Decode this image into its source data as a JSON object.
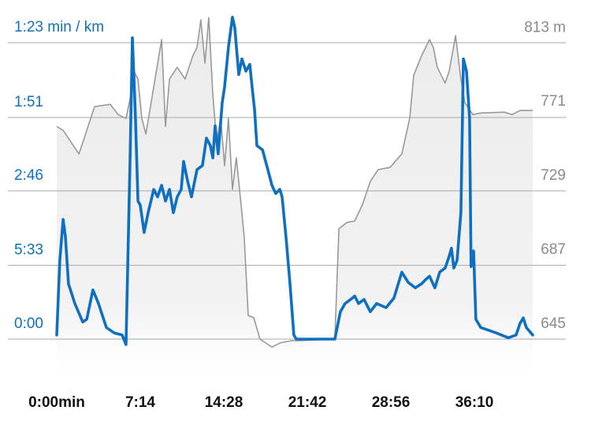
{
  "chart_data": {
    "type": "line",
    "xlim": [
      0,
      2473
    ],
    "xticks": [
      {
        "value": 0,
        "label": "0:00min"
      },
      {
        "value": 434,
        "label": "7:14"
      },
      {
        "value": 868,
        "label": "14:28"
      },
      {
        "value": 1302,
        "label": "21:42"
      },
      {
        "value": 1736,
        "label": "28:56"
      },
      {
        "value": 2170,
        "label": "36:10"
      }
    ],
    "ylim": [
      0,
      48
    ],
    "yticks": [
      {
        "value": 0,
        "label": "0:00"
      },
      {
        "value": 10.81,
        "label": "5:33"
      },
      {
        "value": 21.69,
        "label": "2:46"
      },
      {
        "value": 32.43,
        "label": "1:51"
      },
      {
        "value": 43.37,
        "label": "1:23 min / km"
      }
    ],
    "y2lim": [
      645,
      831
    ],
    "y2ticks": [
      645,
      687,
      729,
      771,
      {
        "value": 813,
        "label": "813 m"
      }
    ],
    "grid": true,
    "series": [
      {
        "color": "#999999",
        "axis": "y2",
        "x": [
          0,
          33,
          74,
          115,
          143,
          176,
          197,
          278,
          319,
          360,
          381,
          401,
          422,
          442,
          463,
          504,
          545,
          565,
          586,
          626,
          667,
          708,
          729,
          749,
          770,
          790,
          811,
          831,
          852,
          872,
          892,
          913,
          933,
          954,
          974,
          995,
          1024,
          1056,
          1118,
          1159,
          1220,
          1261,
          1445,
          1466,
          1507,
          1548,
          1588,
          1629,
          1670,
          1732,
          1793,
          1834,
          1855,
          1896,
          1937,
          1957,
          1977,
          2018,
          2039,
          2072,
          2100,
          2121,
          2162,
          2203,
          2325,
          2366,
          2407,
          2473
        ],
        "values": [
          765.6,
          763.4,
          756.7,
          750.0,
          758.9,
          770.1,
          776.8,
          778.1,
          772.3,
          770.1,
          781.3,
          796.9,
          792.4,
          770.1,
          761.2,
          788.0,
          814.8,
          765.6,
          792.4,
          799.1,
          792.4,
          805.8,
          810.3,
          826.0,
          801.4,
          827.3,
          783.5,
          756.7,
          770.1,
          743.3,
          770.1,
          729.9,
          747.8,
          725.4,
          703.1,
          658.4,
          657.1,
          645.0,
          640.5,
          642.8,
          644.1,
          644.1,
          645.0,
          707.6,
          711.1,
          712.0,
          721.0,
          734.4,
          741.1,
          742.4,
          750.0,
          770.1,
          794.7,
          805.8,
          814.8,
          810.3,
          799.1,
          790.2,
          796.9,
          817.0,
          792.4,
          779.0,
          772.3,
          773.2,
          773.7,
          772.3,
          774.6,
          774.6
        ]
      },
      {
        "color": "#1070c0",
        "x": [
          0,
          16,
          33,
          45,
          61,
          94,
          135,
          156,
          188,
          217,
          258,
          299,
          340,
          360,
          381,
          393,
          409,
          422,
          434,
          454,
          475,
          504,
          524,
          545,
          565,
          586,
          606,
          626,
          647,
          659,
          680,
          700,
          729,
          757,
          778,
          798,
          811,
          823,
          839,
          860,
          872,
          892,
          913,
          925,
          946,
          962,
          983,
          1003,
          1015,
          1028,
          1040,
          1069,
          1097,
          1118,
          1138,
          1159,
          1171,
          1191,
          1212,
          1232,
          1245,
          1445,
          1474,
          1498,
          1527,
          1548,
          1568,
          1597,
          1629,
          1662,
          1711,
          1752,
          1793,
          1826,
          1863,
          1896,
          1916,
          1937,
          1965,
          1990,
          2018,
          2039,
          2051,
          2063,
          2080,
          2100,
          2113,
          2129,
          2145,
          2153,
          2166,
          2178,
          2203,
          2284,
          2346,
          2387,
          2407,
          2424,
          2440,
          2473
        ],
        "values": [
          0.6,
          11.5,
          17.5,
          15.0,
          8.1,
          5.2,
          2.5,
          2.9,
          7.2,
          5.2,
          1.7,
          0.9,
          0.6,
          -0.8,
          26.5,
          44.1,
          32.3,
          20.2,
          19.6,
          15.6,
          18.5,
          21.9,
          20.8,
          22.5,
          20.2,
          21.9,
          18.5,
          20.8,
          21.9,
          26.0,
          23.1,
          20.8,
          24.8,
          25.4,
          29.4,
          28.3,
          26.5,
          31.2,
          27.1,
          34.6,
          36.9,
          42.7,
          47.1,
          45.6,
          38.7,
          41.0,
          39.2,
          40.2,
          36.9,
          33.5,
          28.3,
          27.7,
          24.8,
          22.5,
          21.3,
          21.9,
          20.8,
          15.0,
          8.1,
          0.6,
          0,
          0,
          4.0,
          5.2,
          5.8,
          6.3,
          5.2,
          5.8,
          4.0,
          5.2,
          4.6,
          6.0,
          9.8,
          8.3,
          7.5,
          8.1,
          8.7,
          9.2,
          7.5,
          9.8,
          10.4,
          12.1,
          13.3,
          10.4,
          11.5,
          18.5,
          41.0,
          39.2,
          32.3,
          10.6,
          12.9,
          2.9,
          1.7,
          0.9,
          0.2,
          0.6,
          2.3,
          3.1,
          1.7,
          0.6
        ]
      }
    ]
  }
}
